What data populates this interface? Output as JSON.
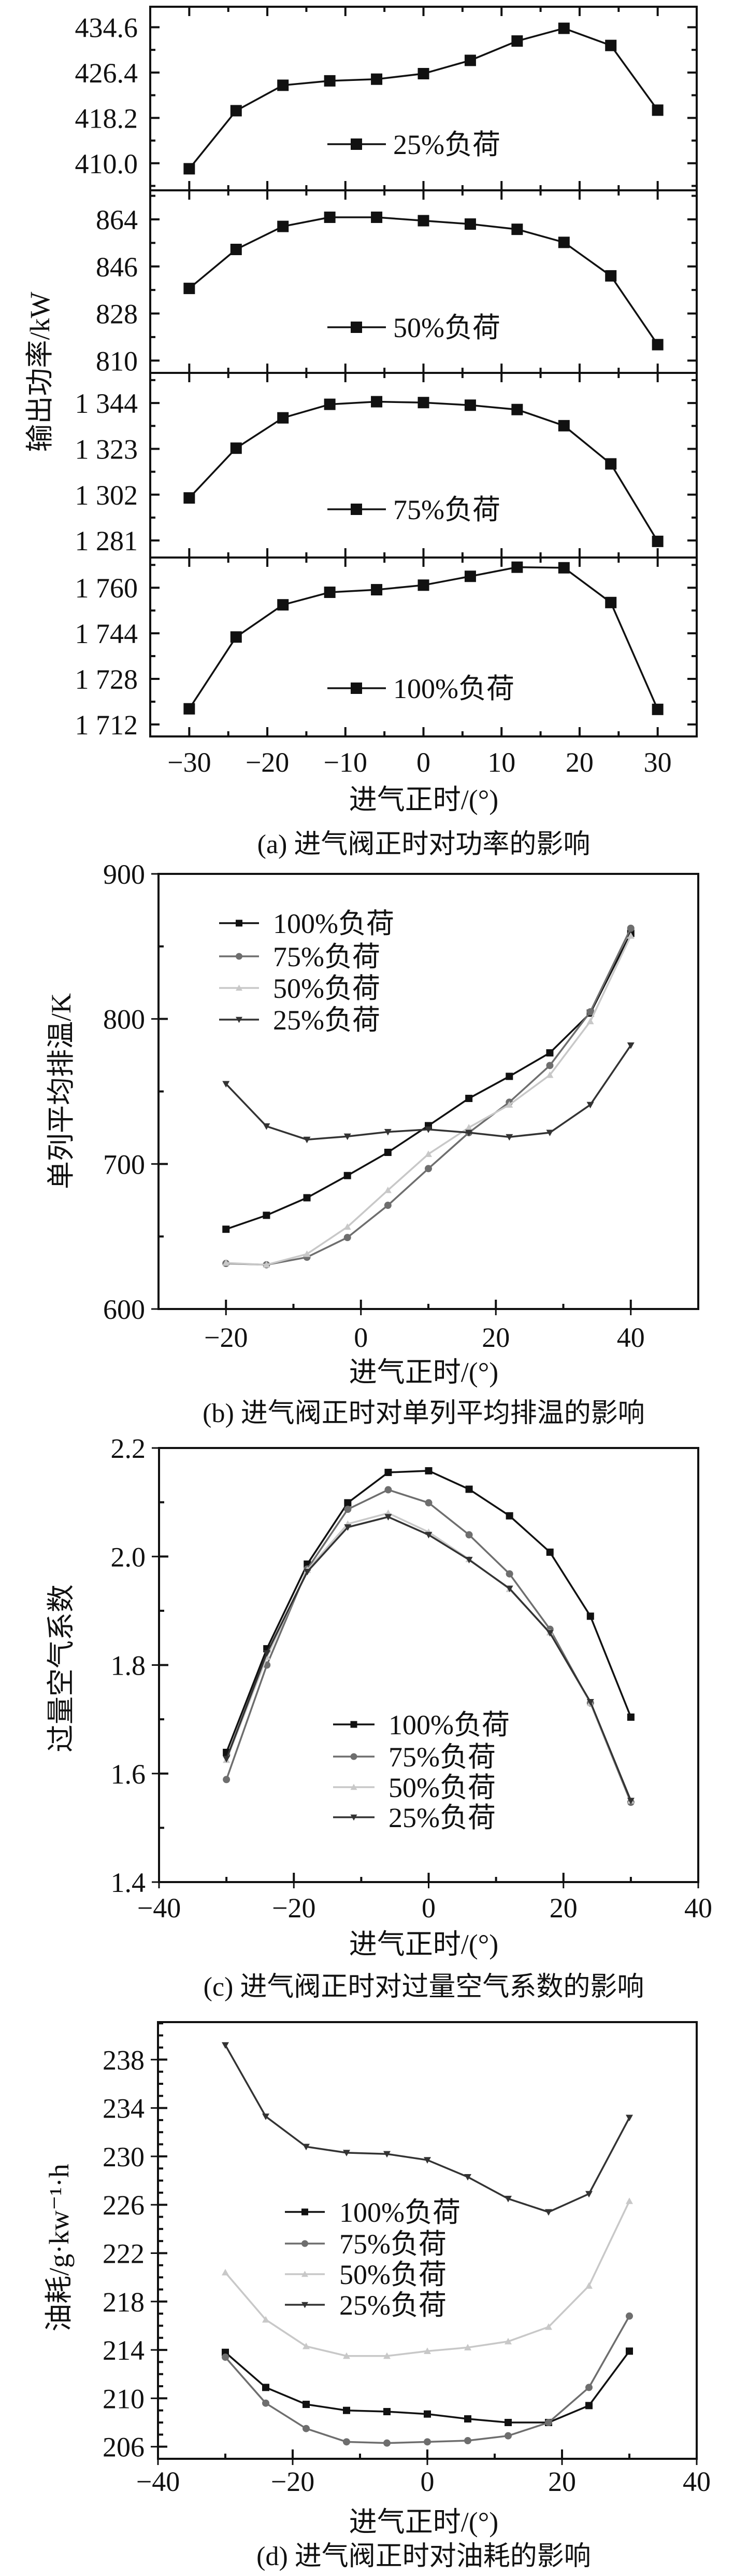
{
  "chart_data": [
    {
      "id": "a",
      "type": "line",
      "caption": "(a) 进气阀正时对功率的影响",
      "xlabel": "进气正时/(°)",
      "ylabel": "输出功率/kW",
      "xlim": [
        -35,
        35
      ],
      "x_ticks": [
        -30,
        -20,
        -10,
        0,
        10,
        20,
        30
      ],
      "x_tick_labels": [
        "−30",
        "−20",
        "−10",
        "0",
        "10",
        "20",
        "30"
      ],
      "x": [
        -30,
        -24,
        -18,
        -12,
        -6,
        0,
        6,
        12,
        18,
        24,
        30
      ],
      "panels": [
        {
          "legend": "25%负荷",
          "ylim": [
            405.1,
            438.3
          ],
          "y_ticks": [
            410.0,
            418.2,
            426.4,
            434.6
          ],
          "y_tick_labels": [
            "410.0",
            "418.2",
            "426.4",
            "434.6"
          ],
          "values": [
            409.0,
            419.5,
            424.1,
            424.9,
            425.2,
            426.2,
            428.6,
            432.1,
            434.4,
            431.3,
            419.6
          ]
        },
        {
          "legend": "50%负荷",
          "ylim": [
            805.3,
            875.1
          ],
          "y_ticks": [
            810,
            828,
            846,
            864
          ],
          "y_tick_labels": [
            "810",
            "828",
            "846",
            "864"
          ],
          "values": [
            837.6,
            852.5,
            861.3,
            864.8,
            864.8,
            863.5,
            862.2,
            860.2,
            855.2,
            842.4,
            816.1
          ]
        },
        {
          "legend": "75%负荷",
          "ylim": [
            1273.2,
            1357.8
          ],
          "y_ticks": [
            1281,
            1302,
            1323,
            1344
          ],
          "y_tick_labels": [
            "1 281",
            "1 302",
            "1 323",
            "1 344"
          ],
          "values": [
            1300.5,
            1323.3,
            1337.2,
            1343.4,
            1344.6,
            1344.2,
            1343.0,
            1341.0,
            1333.6,
            1316.1,
            1280.6
          ]
        },
        {
          "legend": "100%负荷",
          "ylim": [
            1707.8,
            1770.6
          ],
          "y_ticks": [
            1712,
            1728,
            1744,
            1760
          ],
          "y_tick_labels": [
            "1 712",
            "1 728",
            "1 744",
            "1 760"
          ],
          "values": [
            1717.5,
            1742.7,
            1754.0,
            1758.4,
            1759.3,
            1760.9,
            1764.0,
            1767.2,
            1767.0,
            1754.8,
            1717.3
          ]
        }
      ]
    },
    {
      "id": "b",
      "type": "line",
      "caption": "(b) 进气阀正时对单列平均排温的影响",
      "xlabel": "进气正时/(°)",
      "ylabel": "单列平均排温/K",
      "xlim": [
        -30,
        50
      ],
      "ylim": [
        600,
        900
      ],
      "x_ticks": [
        -20,
        0,
        20,
        40
      ],
      "x_tick_labels": [
        "−20",
        "0",
        "20",
        "40"
      ],
      "y_ticks": [
        600,
        700,
        800,
        900
      ],
      "y_tick_labels": [
        "600",
        "700",
        "800",
        "900"
      ],
      "legend_position": "top-left",
      "x": [
        -20,
        -14,
        -8,
        -2,
        4,
        10,
        16,
        22,
        28,
        34,
        40
      ],
      "series": [
        {
          "name": "100%负荷",
          "marker": "square",
          "color": "#111111",
          "values": [
            655,
            664.6,
            676.7,
            692,
            708,
            726.4,
            745.2,
            760.4,
            776.6,
            804,
            859
          ]
        },
        {
          "name": "75%负荷",
          "marker": "circle",
          "color": "#6e6e6e",
          "values": [
            631.4,
            630.5,
            635.7,
            649.3,
            671.5,
            696.8,
            721.6,
            742.6,
            767.9,
            804.9,
            862.5
          ]
        },
        {
          "name": "50%负荷",
          "marker": "triangle-up",
          "color": "#c8c8c8",
          "values": [
            631.8,
            630.5,
            637.9,
            656.6,
            681.9,
            706.8,
            725.1,
            740.8,
            761.3,
            798.3,
            857.3
          ]
        },
        {
          "name": "25%负荷",
          "marker": "triangle-down",
          "color": "#333333",
          "values": [
            755.2,
            726,
            716.8,
            719,
            722.1,
            723.8,
            721.6,
            718.6,
            721.6,
            740.8,
            781.8
          ]
        }
      ]
    },
    {
      "id": "c",
      "type": "line",
      "caption": "(c) 进气阀正时对过量空气系数的影响",
      "xlabel": "进气正时/(°)",
      "ylabel": "过量空气系数",
      "xlim": [
        -40,
        40
      ],
      "ylim": [
        1.4,
        2.2
      ],
      "x_ticks": [
        -40,
        -20,
        0,
        20,
        40
      ],
      "x_tick_labels": [
        "−40",
        "−20",
        "0",
        "20",
        "40"
      ],
      "y_ticks": [
        1.4,
        1.6,
        1.8,
        2.0,
        2.2
      ],
      "y_tick_labels": [
        "1.4",
        "1.6",
        "1.8",
        "2.0",
        "2.2"
      ],
      "legend_position": "bottom-center",
      "x": [
        -30,
        -24,
        -18,
        -12,
        -6,
        0,
        6,
        12,
        18,
        24,
        30
      ],
      "series": [
        {
          "name": "100%负荷",
          "marker": "square",
          "color": "#111111",
          "values": [
            1.639,
            1.83,
            1.986,
            2.099,
            2.155,
            2.158,
            2.124,
            2.075,
            2.008,
            1.89,
            1.704
          ]
        },
        {
          "name": "75%负荷",
          "marker": "circle",
          "color": "#6e6e6e",
          "values": [
            1.589,
            1.8,
            1.977,
            2.087,
            2.123,
            2.099,
            2.04,
            1.968,
            1.866,
            1.73,
            1.547
          ]
        },
        {
          "name": "50%负荷",
          "marker": "triangle-up",
          "color": "#c8c8c8",
          "values": [
            1.625,
            1.815,
            1.975,
            2.06,
            2.08,
            2.045,
            1.995,
            1.94,
            1.86,
            1.73,
            1.55
          ]
        },
        {
          "name": "25%负荷",
          "marker": "triangle-down",
          "color": "#333333",
          "values": [
            1.627,
            1.822,
            1.972,
            2.054,
            2.073,
            2.04,
            1.994,
            1.941,
            1.859,
            1.732,
            1.55
          ]
        }
      ]
    },
    {
      "id": "d",
      "type": "line",
      "caption": "(d) 进气阀正时对油耗的影响",
      "xlabel": "进气正时/(°)",
      "ylabel": "油耗/g·kw⁻¹·h",
      "xlim": [
        -40,
        40
      ],
      "ylim": [
        205.0,
        241.1
      ],
      "x_ticks": [
        -40,
        -20,
        0,
        20,
        40
      ],
      "x_tick_labels": [
        "−40",
        "−20",
        "0",
        "20",
        "40"
      ],
      "y_ticks": [
        206,
        210,
        214,
        218,
        222,
        226,
        230,
        234,
        238
      ],
      "y_tick_labels": [
        "206",
        "210",
        "214",
        "218",
        "222",
        "226",
        "230",
        "234",
        "238"
      ],
      "legend_position": "center-left",
      "x": [
        -30,
        -24,
        -18,
        -12,
        -6,
        0,
        6,
        12,
        18,
        24,
        30
      ],
      "series": [
        {
          "name": "100%负荷",
          "marker": "square",
          "color": "#111111",
          "values": [
            213.8,
            210.9,
            209.5,
            209.0,
            208.9,
            208.7,
            208.3,
            208.0,
            208.0,
            209.4,
            213.9
          ]
        },
        {
          "name": "75%负荷",
          "marker": "circle",
          "color": "#6e6e6e",
          "values": [
            213.4,
            209.6,
            207.5,
            206.4,
            206.3,
            206.4,
            206.5,
            206.9,
            208.0,
            210.9,
            216.8
          ]
        },
        {
          "name": "50%负荷",
          "marker": "triangle-up",
          "color": "#c8c8c8",
          "values": [
            220.4,
            216.5,
            214.3,
            213.5,
            213.5,
            213.9,
            214.2,
            214.7,
            215.9,
            219.3,
            226.3
          ]
        },
        {
          "name": "25%负荷",
          "marker": "triangle-down",
          "color": "#333333",
          "values": [
            239.2,
            233.3,
            230.8,
            230.3,
            230.2,
            229.7,
            228.3,
            226.5,
            225.4,
            226.9,
            233.2
          ]
        }
      ]
    }
  ]
}
